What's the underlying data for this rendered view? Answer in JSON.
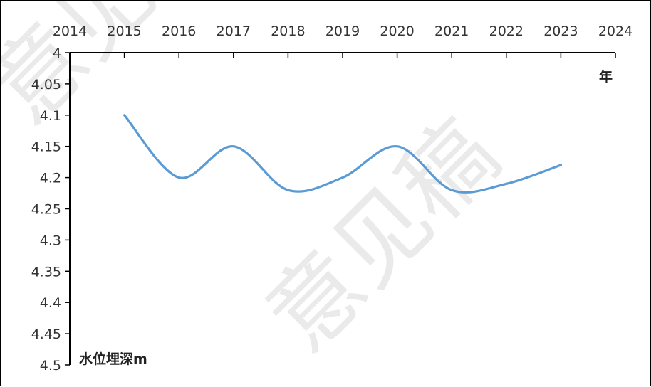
{
  "chart_data": {
    "type": "line",
    "x": [
      2015,
      2016,
      2017,
      2018,
      2019,
      2020,
      2021,
      2022,
      2023
    ],
    "series": [
      {
        "values": [
          4.1,
          4.2,
          4.15,
          4.22,
          4.2,
          4.15,
          4.22,
          4.21,
          4.18
        ],
        "color": "#5b9bd5"
      }
    ],
    "x_ticks": [
      "2014",
      "2015",
      "2016",
      "2017",
      "2018",
      "2019",
      "2020",
      "2021",
      "2022",
      "2023",
      "2024"
    ],
    "y_ticks": [
      "4",
      "4.05",
      "4.1",
      "4.15",
      "4.2",
      "4.25",
      "4.3",
      "4.35",
      "4.4",
      "4.45",
      "4.5"
    ],
    "xlim": [
      2014,
      2024
    ],
    "ylim": [
      4.0,
      4.5
    ],
    "y_inverted": true,
    "x_axis_position": "top",
    "xlabel": "年",
    "ylabel": "水位埋深m",
    "grid": false,
    "smooth": true
  },
  "watermark": {
    "text": "意见稿"
  }
}
